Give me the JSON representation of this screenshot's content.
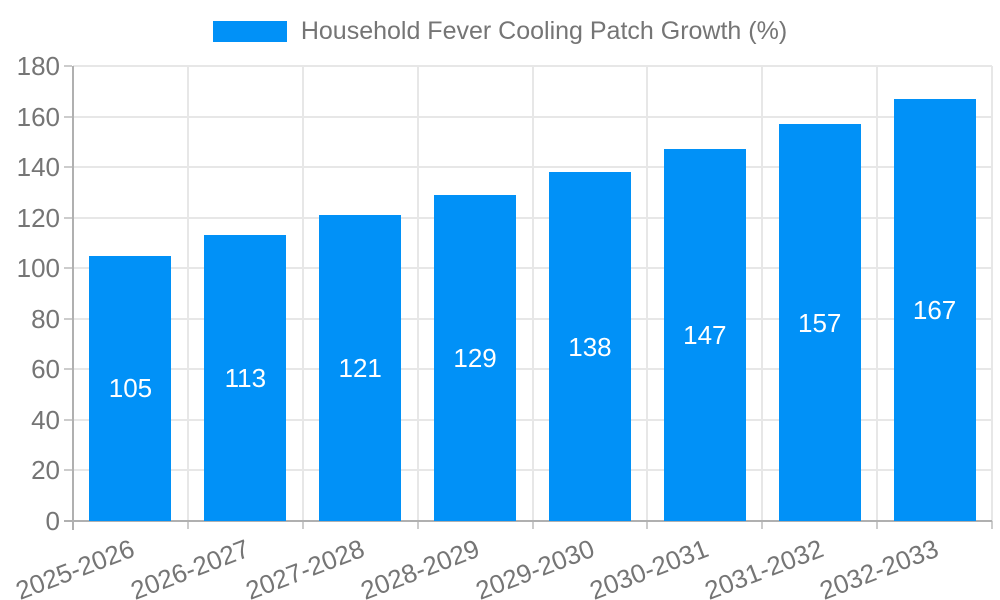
{
  "chart_data": {
    "type": "bar",
    "title": "Household Fever Cooling Patch Growth (%)",
    "categories": [
      "2025-2026",
      "2026-2027",
      "2027-2028",
      "2028-2029",
      "2029-2030",
      "2030-2031",
      "2031-2032",
      "2032-2033"
    ],
    "values": [
      105,
      113,
      121,
      129,
      138,
      147,
      157,
      167
    ],
    "value_labels": [
      "105",
      "113",
      "121",
      "129",
      "138",
      "147",
      "157",
      "167"
    ],
    "xlabel": "",
    "ylabel": "",
    "ylim": [
      0,
      180
    ],
    "ytick_step": 20,
    "ytick_labels": [
      "0",
      "20",
      "40",
      "60",
      "80",
      "100",
      "120",
      "140",
      "160",
      "180"
    ],
    "grid": true,
    "legend_position": "top-center",
    "legend_entries": [
      "Household Fever Cooling Patch Growth (%)"
    ]
  },
  "colors": {
    "bar": "#0191f7",
    "axis_text": "#757575",
    "value_label_text": "#ffffff",
    "grid_line": "#e7e7e7",
    "axis_line": "#b0b0b0",
    "tick_mark": "#cccccc",
    "background": "#ffffff"
  }
}
